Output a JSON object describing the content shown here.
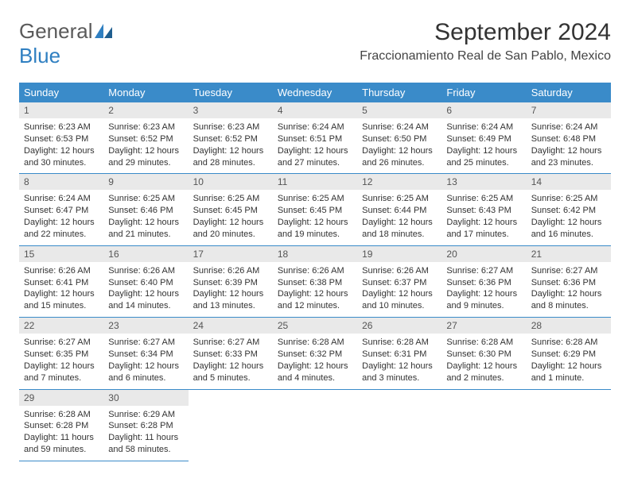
{
  "logo": {
    "line1": "General",
    "line2": "Blue"
  },
  "title": "September 2024",
  "location": "Fraccionamiento Real de San Pablo, Mexico",
  "colors": {
    "header_bg": "#3a8bc9",
    "header_text": "#ffffff",
    "daynum_bg": "#e9e9e9",
    "border": "#3a8bc9",
    "logo_gray": "#5a5a5a",
    "logo_blue": "#2f7fc1",
    "text": "#333333",
    "background": "#ffffff"
  },
  "weekdays": [
    "Sunday",
    "Monday",
    "Tuesday",
    "Wednesday",
    "Thursday",
    "Friday",
    "Saturday"
  ],
  "days": [
    {
      "n": "1",
      "sr": "6:23 AM",
      "ss": "6:53 PM",
      "dl": "12 hours and 30 minutes."
    },
    {
      "n": "2",
      "sr": "6:23 AM",
      "ss": "6:52 PM",
      "dl": "12 hours and 29 minutes."
    },
    {
      "n": "3",
      "sr": "6:23 AM",
      "ss": "6:52 PM",
      "dl": "12 hours and 28 minutes."
    },
    {
      "n": "4",
      "sr": "6:24 AM",
      "ss": "6:51 PM",
      "dl": "12 hours and 27 minutes."
    },
    {
      "n": "5",
      "sr": "6:24 AM",
      "ss": "6:50 PM",
      "dl": "12 hours and 26 minutes."
    },
    {
      "n": "6",
      "sr": "6:24 AM",
      "ss": "6:49 PM",
      "dl": "12 hours and 25 minutes."
    },
    {
      "n": "7",
      "sr": "6:24 AM",
      "ss": "6:48 PM",
      "dl": "12 hours and 23 minutes."
    },
    {
      "n": "8",
      "sr": "6:24 AM",
      "ss": "6:47 PM",
      "dl": "12 hours and 22 minutes."
    },
    {
      "n": "9",
      "sr": "6:25 AM",
      "ss": "6:46 PM",
      "dl": "12 hours and 21 minutes."
    },
    {
      "n": "10",
      "sr": "6:25 AM",
      "ss": "6:45 PM",
      "dl": "12 hours and 20 minutes."
    },
    {
      "n": "11",
      "sr": "6:25 AM",
      "ss": "6:45 PM",
      "dl": "12 hours and 19 minutes."
    },
    {
      "n": "12",
      "sr": "6:25 AM",
      "ss": "6:44 PM",
      "dl": "12 hours and 18 minutes."
    },
    {
      "n": "13",
      "sr": "6:25 AM",
      "ss": "6:43 PM",
      "dl": "12 hours and 17 minutes."
    },
    {
      "n": "14",
      "sr": "6:25 AM",
      "ss": "6:42 PM",
      "dl": "12 hours and 16 minutes."
    },
    {
      "n": "15",
      "sr": "6:26 AM",
      "ss": "6:41 PM",
      "dl": "12 hours and 15 minutes."
    },
    {
      "n": "16",
      "sr": "6:26 AM",
      "ss": "6:40 PM",
      "dl": "12 hours and 14 minutes."
    },
    {
      "n": "17",
      "sr": "6:26 AM",
      "ss": "6:39 PM",
      "dl": "12 hours and 13 minutes."
    },
    {
      "n": "18",
      "sr": "6:26 AM",
      "ss": "6:38 PM",
      "dl": "12 hours and 12 minutes."
    },
    {
      "n": "19",
      "sr": "6:26 AM",
      "ss": "6:37 PM",
      "dl": "12 hours and 10 minutes."
    },
    {
      "n": "20",
      "sr": "6:27 AM",
      "ss": "6:36 PM",
      "dl": "12 hours and 9 minutes."
    },
    {
      "n": "21",
      "sr": "6:27 AM",
      "ss": "6:36 PM",
      "dl": "12 hours and 8 minutes."
    },
    {
      "n": "22",
      "sr": "6:27 AM",
      "ss": "6:35 PM",
      "dl": "12 hours and 7 minutes."
    },
    {
      "n": "23",
      "sr": "6:27 AM",
      "ss": "6:34 PM",
      "dl": "12 hours and 6 minutes."
    },
    {
      "n": "24",
      "sr": "6:27 AM",
      "ss": "6:33 PM",
      "dl": "12 hours and 5 minutes."
    },
    {
      "n": "25",
      "sr": "6:28 AM",
      "ss": "6:32 PM",
      "dl": "12 hours and 4 minutes."
    },
    {
      "n": "26",
      "sr": "6:28 AM",
      "ss": "6:31 PM",
      "dl": "12 hours and 3 minutes."
    },
    {
      "n": "27",
      "sr": "6:28 AM",
      "ss": "6:30 PM",
      "dl": "12 hours and 2 minutes."
    },
    {
      "n": "28",
      "sr": "6:28 AM",
      "ss": "6:29 PM",
      "dl": "12 hours and 1 minute."
    },
    {
      "n": "29",
      "sr": "6:28 AM",
      "ss": "6:28 PM",
      "dl": "11 hours and 59 minutes."
    },
    {
      "n": "30",
      "sr": "6:29 AM",
      "ss": "6:28 PM",
      "dl": "11 hours and 58 minutes."
    }
  ],
  "labels": {
    "sunrise": "Sunrise:",
    "sunset": "Sunset:",
    "daylight": "Daylight:"
  }
}
